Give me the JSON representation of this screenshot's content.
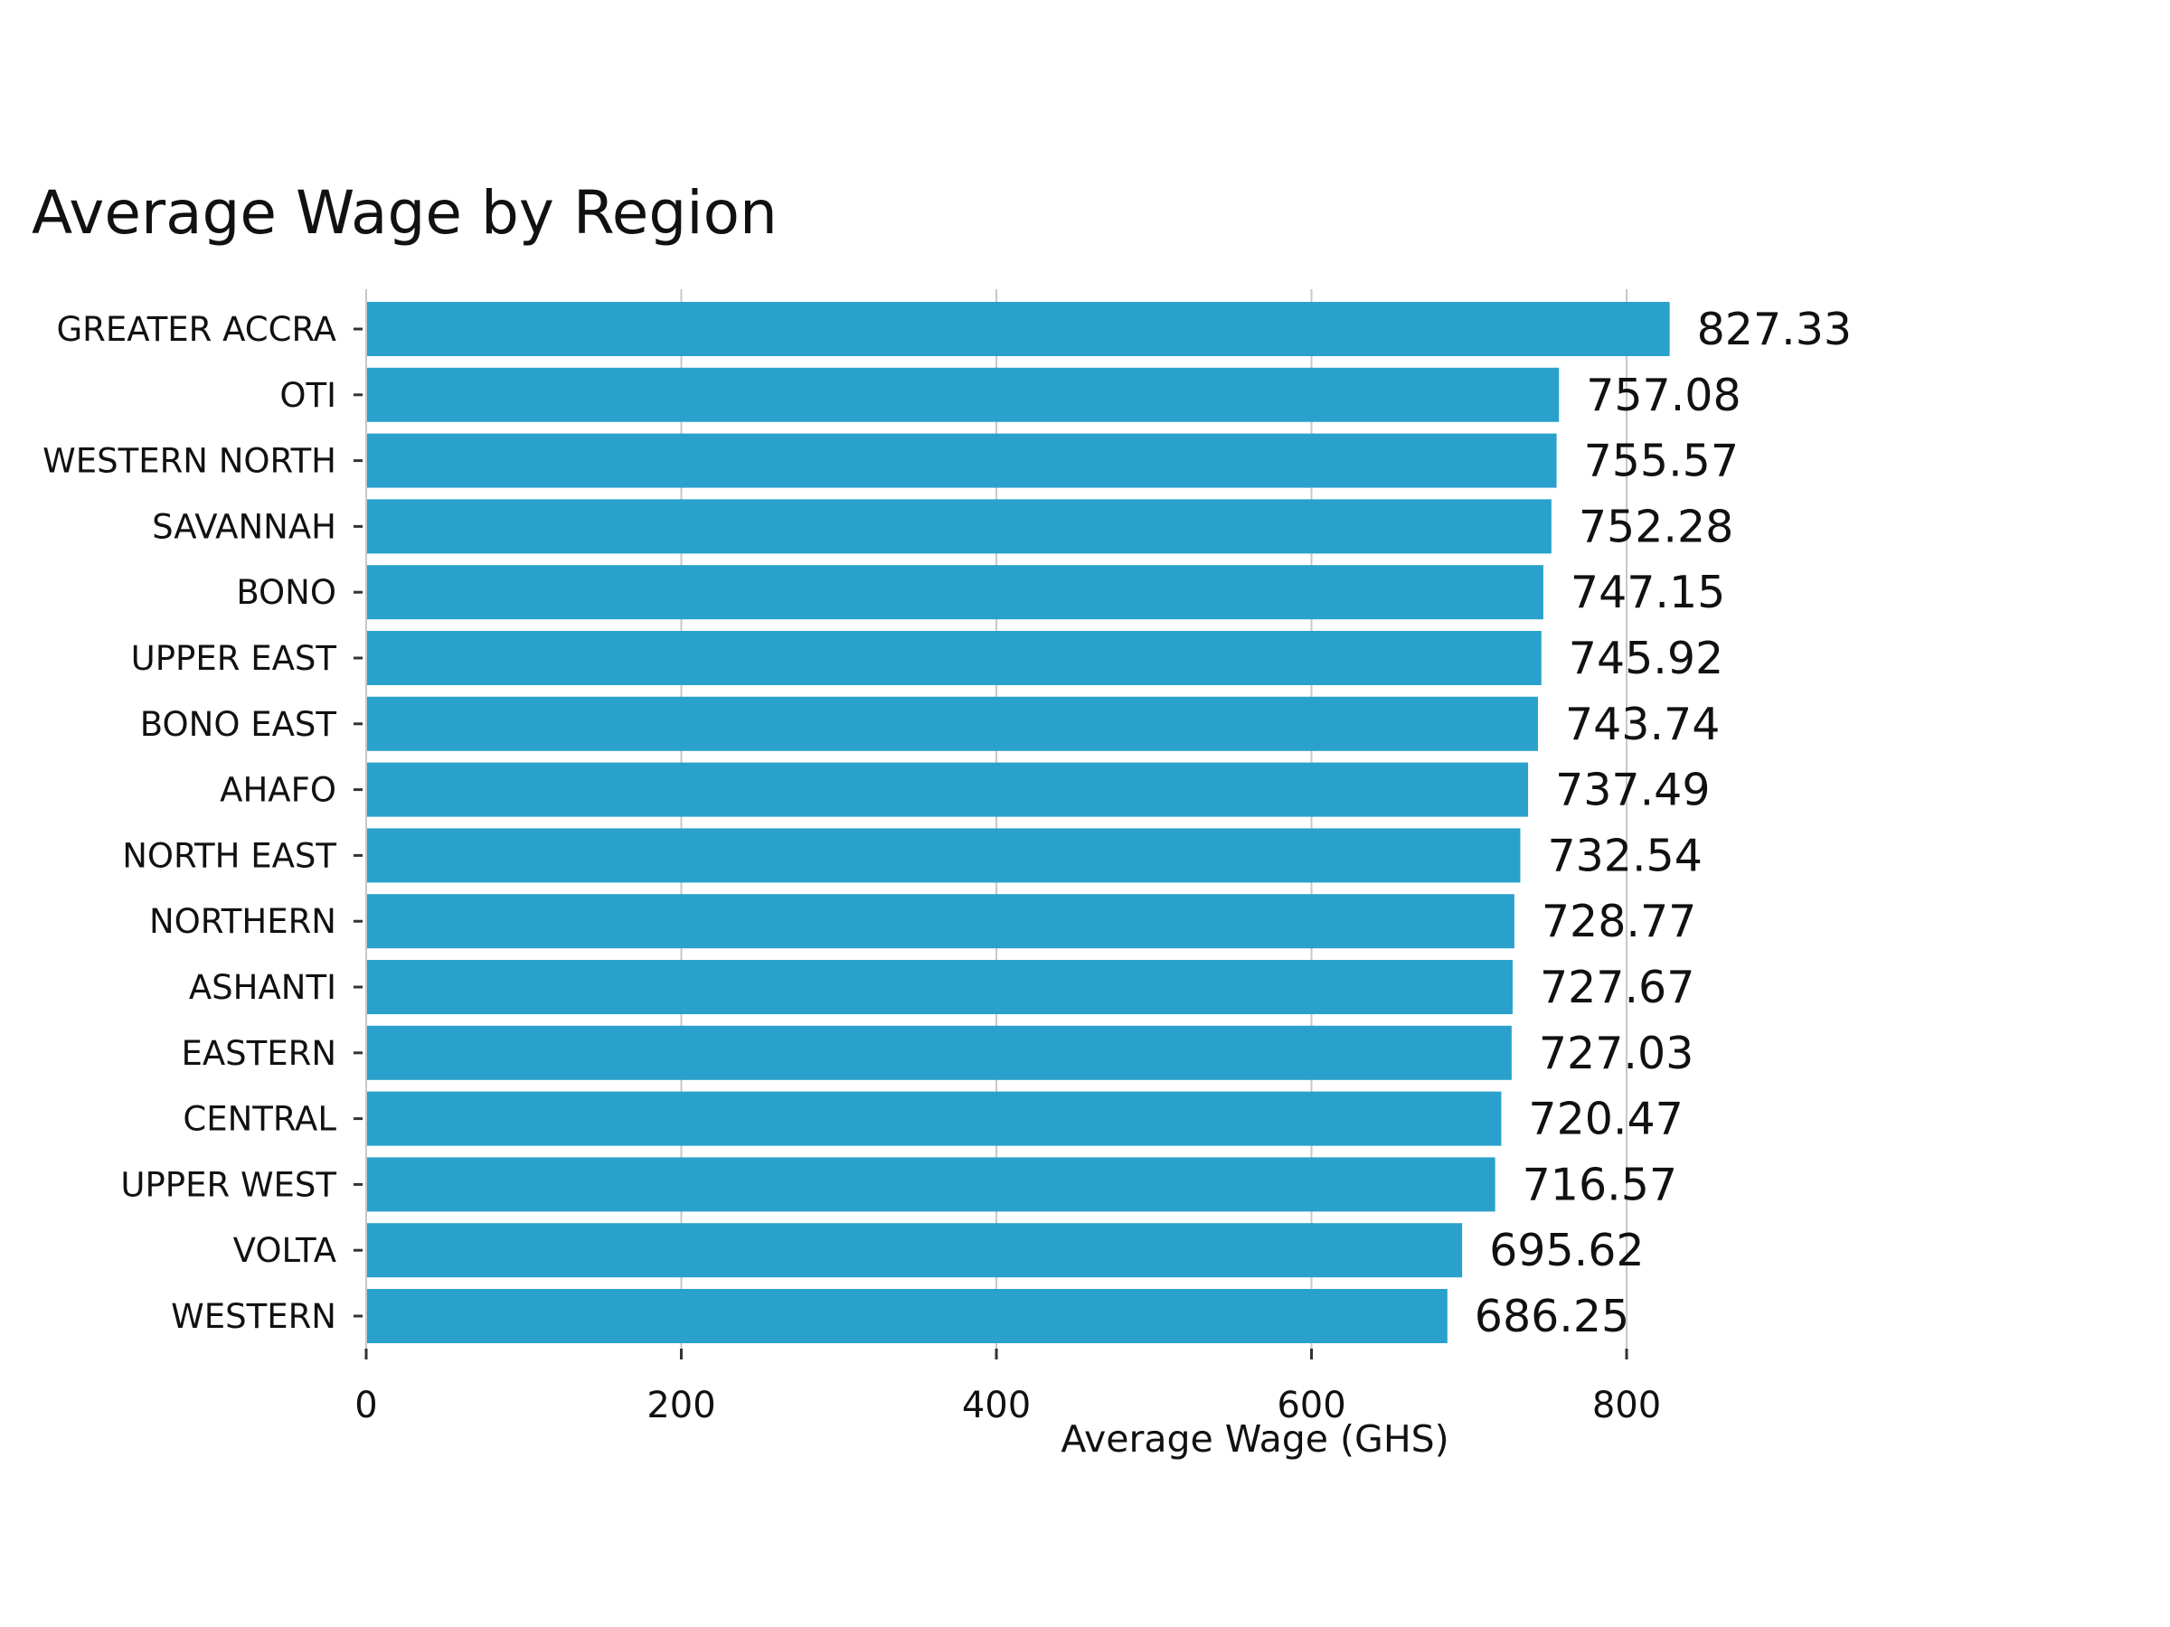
{
  "chart_data": {
    "type": "bar",
    "orientation": "horizontal",
    "title": "Average Wage by Region",
    "xlabel": "Average Wage (GHS)",
    "ylabel": "",
    "xlim": [
      0,
      830
    ],
    "xticks": [
      0,
      200,
      400,
      600,
      800
    ],
    "grid": true,
    "categories": [
      "GREATER ACCRA",
      "OTI",
      "WESTERN NORTH",
      "SAVANNAH",
      "BONO",
      "UPPER EAST",
      "BONO EAST",
      "AHAFO",
      "NORTH EAST",
      "NORTHERN",
      "ASHANTI",
      "EASTERN",
      "CENTRAL",
      "UPPER WEST",
      "VOLTA",
      "WESTERN"
    ],
    "values": [
      827.33,
      757.08,
      755.57,
      752.28,
      747.15,
      745.92,
      743.74,
      737.49,
      732.54,
      728.77,
      727.67,
      727.03,
      720.47,
      716.57,
      695.62,
      686.25
    ],
    "value_labels": [
      "827.33",
      "757.08",
      "755.57",
      "752.28",
      "747.15",
      "745.92",
      "743.74",
      "737.49",
      "732.54",
      "728.77",
      "727.67",
      "727.03",
      "720.47",
      "716.57",
      "695.62",
      "686.25"
    ],
    "colors": {
      "bar": "#29a1cc",
      "text": "#111111",
      "grid": "#c8c8c8"
    }
  }
}
